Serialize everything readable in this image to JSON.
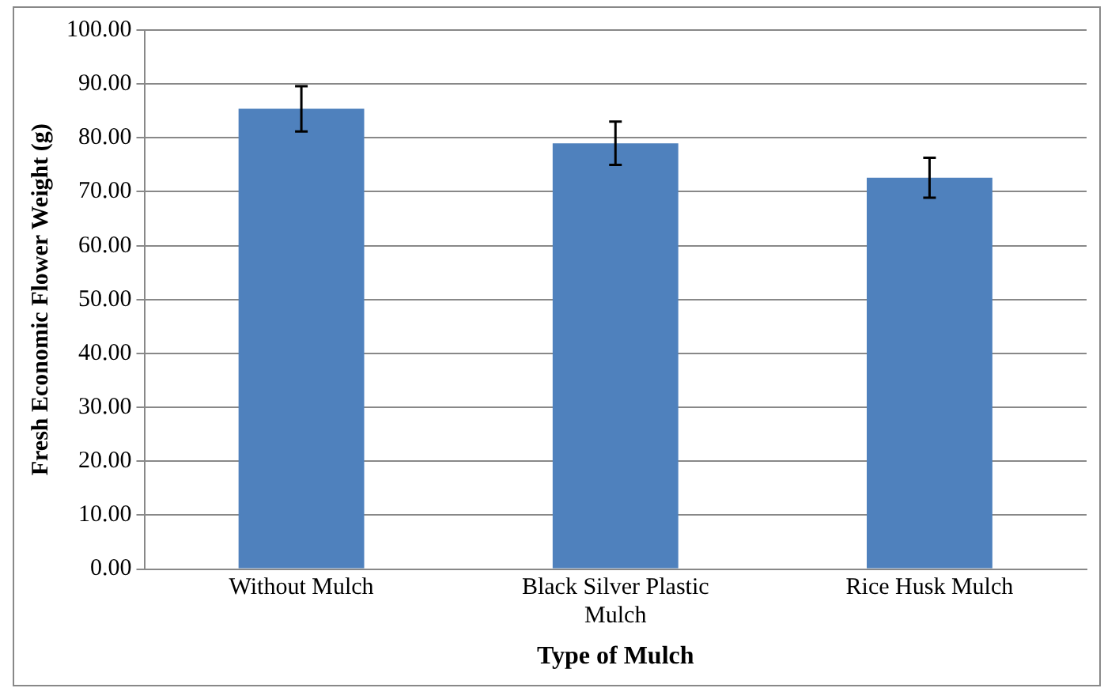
{
  "chart_data": {
    "type": "bar",
    "xlabel": "Type of Mulch",
    "ylabel": "Fresh Economic Flower Weight (g)",
    "categories": [
      "Without Mulch",
      "Black Silver Plastic Mulch",
      "Rice Husk Mulch"
    ],
    "values": [
      85.4,
      79.0,
      72.6
    ],
    "errors": [
      4.2,
      4.0,
      3.7
    ],
    "color": "#4f81bd",
    "ylim": [
      0,
      100
    ],
    "yticks": [
      {
        "value": 0,
        "label": "0.00"
      },
      {
        "value": 10,
        "label": "10.00"
      },
      {
        "value": 20,
        "label": "20.00"
      },
      {
        "value": 30,
        "label": "30.00"
      },
      {
        "value": 40,
        "label": "40.00"
      },
      {
        "value": 50,
        "label": "50.00"
      },
      {
        "value": 60,
        "label": "60.00"
      },
      {
        "value": 70,
        "label": "70.00"
      },
      {
        "value": 80,
        "label": "80.00"
      },
      {
        "value": 90,
        "label": "90.00"
      },
      {
        "value": 100,
        "label": "100.00"
      }
    ],
    "grid": "y"
  }
}
